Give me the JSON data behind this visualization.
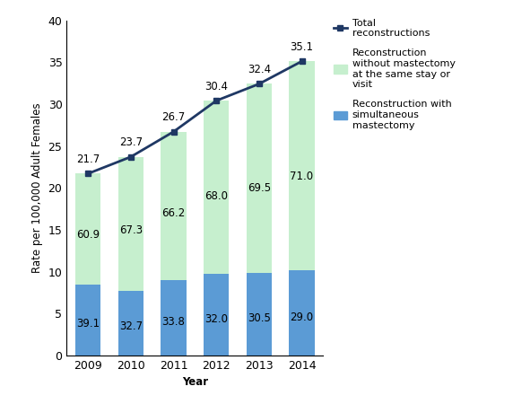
{
  "years": [
    2009,
    2010,
    2011,
    2012,
    2013,
    2014
  ],
  "simultaneous_values": [
    8.47,
    7.76,
    9.02,
    9.73,
    9.88,
    10.18
  ],
  "simultaneous_pct": [
    "39.1",
    "32.7",
    "33.8",
    "32.0",
    "30.5",
    "29.0"
  ],
  "without_values": [
    13.23,
    15.94,
    17.68,
    20.67,
    22.52,
    24.92
  ],
  "without_pct": [
    "60.9",
    "67.3",
    "66.2",
    "68.0",
    "69.5",
    "71.0"
  ],
  "total_values": [
    21.7,
    23.7,
    26.7,
    30.4,
    32.4,
    35.1
  ],
  "bar_color_simult": "#5b9bd5",
  "bar_color_without": "#c6efce",
  "line_color": "#1f3864",
  "ylabel": "Rate per 100,000 Adult Females",
  "xlabel": "Year",
  "ylim": [
    0,
    40
  ],
  "yticks": [
    0,
    5,
    10,
    15,
    20,
    25,
    30,
    35,
    40
  ],
  "legend_total": "Total\nreconstructions",
  "legend_without": "Reconstruction\nwithout mastectomy\nat the same stay or\nvisit",
  "legend_simult": "Reconstruction with\nsimultaneous\nmastectomy",
  "label_fontsize": 8.5,
  "tick_fontsize": 9,
  "legend_fontsize": 8.0,
  "annot_fontsize": 8.5
}
